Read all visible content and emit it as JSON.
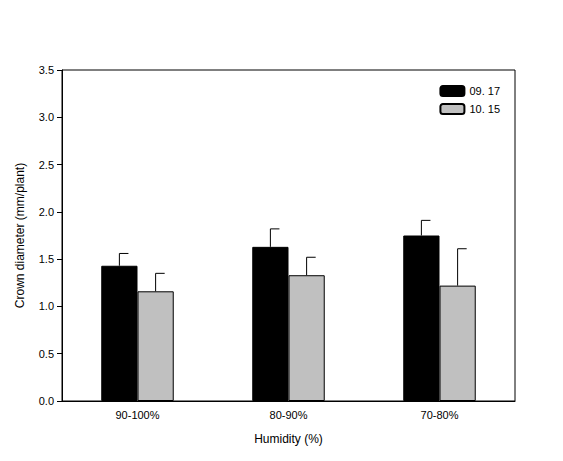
{
  "chart_data": {
    "type": "bar",
    "x_label": "Humidity (%)",
    "y_label": "Crown diameter (mm/plant)",
    "categories": [
      "90-100%",
      "80-90%",
      "70-80%"
    ],
    "series": [
      {
        "name": "09. 17",
        "color": "#000000",
        "values": [
          1.43,
          1.63,
          1.75
        ],
        "errors": [
          0.13,
          0.19,
          0.16
        ]
      },
      {
        "name": "10. 15",
        "color": "#c0c0c0",
        "values": [
          1.16,
          1.33,
          1.22
        ],
        "errors": [
          0.19,
          0.19,
          0.39
        ]
      }
    ],
    "ylim": [
      0,
      3.5
    ],
    "yticks": [
      {
        "value": 0,
        "label": "0.0"
      },
      {
        "value": 0.5,
        "label": "0.5"
      },
      {
        "value": 1,
        "label": "1.0"
      },
      {
        "value": 1.5,
        "label": "1.5"
      },
      {
        "value": 2,
        "label": "2.0"
      },
      {
        "value": 2.5,
        "label": "2.5"
      },
      {
        "value": 3,
        "label": "3.0"
      },
      {
        "value": 3.5,
        "label": "3.5"
      }
    ],
    "grid": false,
    "legend": "upper right"
  }
}
